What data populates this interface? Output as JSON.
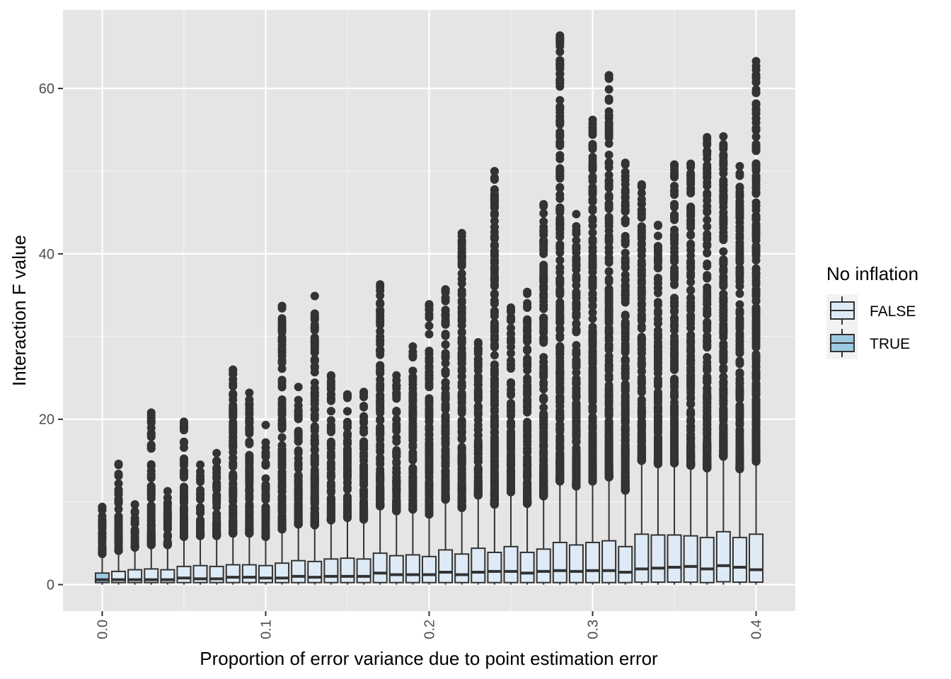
{
  "chart_data": {
    "type": "boxplot",
    "xlabel": "Proportion of error variance due to point estimation error",
    "ylabel": "Interaction F value",
    "x_ticks": [
      "0.0",
      "0.1",
      "0.2",
      "0.3",
      "0.4"
    ],
    "x_tick_values": [
      0.0,
      0.1,
      0.2,
      0.3,
      0.4
    ],
    "y_ticks": [
      "0",
      "20",
      "40",
      "60"
    ],
    "y_tick_values": [
      0,
      20,
      40,
      60
    ],
    "xlim": [
      -0.024,
      0.424
    ],
    "ylim": [
      -3.2,
      69.5
    ],
    "grid": true,
    "legend": {
      "title": "No inflation",
      "position": "right",
      "entries": [
        {
          "label": "FALSE",
          "color": "#deebf7"
        },
        {
          "label": "TRUE",
          "color": "#9ecae1"
        }
      ]
    },
    "colors": {
      "panel_background": "#e5e5e5",
      "grid": "#ffffff",
      "box_outline": "#333333",
      "outlier": "#333333",
      "FALSE": "#deebf7",
      "TRUE": "#9ecae1"
    },
    "boxes": [
      {
        "x": 0.0,
        "group": "TRUE",
        "q1": 0.25,
        "median": 0.6,
        "q3": 1.4,
        "whisker_low": 0.0,
        "whisker_high": 3.2,
        "max_outlier": 9.4
      },
      {
        "x": 0.01,
        "group": "FALSE",
        "q1": 0.25,
        "median": 0.6,
        "q3": 1.6,
        "whisker_low": 0.0,
        "whisker_high": 3.6,
        "max_outlier": 14.6
      },
      {
        "x": 0.02,
        "group": "FALSE",
        "q1": 0.25,
        "median": 0.6,
        "q3": 1.8,
        "whisker_low": 0.0,
        "whisker_high": 4.0,
        "max_outlier": 9.7
      },
      {
        "x": 0.03,
        "group": "FALSE",
        "q1": 0.25,
        "median": 0.6,
        "q3": 1.9,
        "whisker_low": 0.0,
        "whisker_high": 4.3,
        "max_outlier": 20.8
      },
      {
        "x": 0.04,
        "group": "FALSE",
        "q1": 0.25,
        "median": 0.6,
        "q3": 1.8,
        "whisker_low": 0.0,
        "whisker_high": 4.3,
        "max_outlier": 11.3
      },
      {
        "x": 0.05,
        "group": "FALSE",
        "q1": 0.25,
        "median": 0.8,
        "q3": 2.2,
        "whisker_low": 0.0,
        "whisker_high": 5.3,
        "max_outlier": 19.7
      },
      {
        "x": 0.06,
        "group": "FALSE",
        "q1": 0.25,
        "median": 0.7,
        "q3": 2.3,
        "whisker_low": 0.0,
        "whisker_high": 5.4,
        "max_outlier": 14.5
      },
      {
        "x": 0.07,
        "group": "FALSE",
        "q1": 0.25,
        "median": 0.7,
        "q3": 2.2,
        "whisker_low": 0.0,
        "whisker_high": 5.4,
        "max_outlier": 15.9
      },
      {
        "x": 0.08,
        "group": "FALSE",
        "q1": 0.25,
        "median": 0.9,
        "q3": 2.4,
        "whisker_low": 0.0,
        "whisker_high": 5.7,
        "max_outlier": 26.0
      },
      {
        "x": 0.09,
        "group": "FALSE",
        "q1": 0.25,
        "median": 0.9,
        "q3": 2.4,
        "whisker_low": 0.0,
        "whisker_high": 5.7,
        "max_outlier": 23.2
      },
      {
        "x": 0.1,
        "group": "FALSE",
        "q1": 0.25,
        "median": 0.8,
        "q3": 2.3,
        "whisker_low": 0.0,
        "whisker_high": 5.3,
        "max_outlier": 19.3
      },
      {
        "x": 0.11,
        "group": "FALSE",
        "q1": 0.25,
        "median": 0.8,
        "q3": 2.6,
        "whisker_low": 0.0,
        "whisker_high": 6.2,
        "max_outlier": 33.7
      },
      {
        "x": 0.12,
        "group": "FALSE",
        "q1": 0.25,
        "median": 1.0,
        "q3": 2.9,
        "whisker_low": 0.0,
        "whisker_high": 6.8,
        "max_outlier": 23.9
      },
      {
        "x": 0.13,
        "group": "FALSE",
        "q1": 0.25,
        "median": 0.9,
        "q3": 2.8,
        "whisker_low": 0.0,
        "whisker_high": 6.7,
        "max_outlier": 34.9
      },
      {
        "x": 0.14,
        "group": "FALSE",
        "q1": 0.25,
        "median": 1.0,
        "q3": 3.1,
        "whisker_low": 0.0,
        "whisker_high": 7.3,
        "max_outlier": 25.3
      },
      {
        "x": 0.15,
        "group": "FALSE",
        "q1": 0.25,
        "median": 1.0,
        "q3": 3.2,
        "whisker_low": 0.0,
        "whisker_high": 7.6,
        "max_outlier": 23.0
      },
      {
        "x": 0.16,
        "group": "FALSE",
        "q1": 0.25,
        "median": 1.0,
        "q3": 3.1,
        "whisker_low": 0.0,
        "whisker_high": 7.4,
        "max_outlier": 23.3
      },
      {
        "x": 0.17,
        "group": "FALSE",
        "q1": 0.25,
        "median": 1.4,
        "q3": 3.8,
        "whisker_low": 0.0,
        "whisker_high": 9.0,
        "max_outlier": 36.3
      },
      {
        "x": 0.18,
        "group": "FALSE",
        "q1": 0.25,
        "median": 1.2,
        "q3": 3.5,
        "whisker_low": 0.0,
        "whisker_high": 8.4,
        "max_outlier": 25.3
      },
      {
        "x": 0.19,
        "group": "FALSE",
        "q1": 0.25,
        "median": 1.2,
        "q3": 3.6,
        "whisker_low": 0.0,
        "whisker_high": 8.6,
        "max_outlier": 28.8
      },
      {
        "x": 0.2,
        "group": "FALSE",
        "q1": 0.25,
        "median": 1.2,
        "q3": 3.4,
        "whisker_low": 0.0,
        "whisker_high": 8.0,
        "max_outlier": 33.9
      },
      {
        "x": 0.21,
        "group": "FALSE",
        "q1": 0.25,
        "median": 1.5,
        "q3": 4.2,
        "whisker_low": 0.0,
        "whisker_high": 9.8,
        "max_outlier": 35.7
      },
      {
        "x": 0.22,
        "group": "FALSE",
        "q1": 0.25,
        "median": 1.2,
        "q3": 3.7,
        "whisker_low": 0.0,
        "whisker_high": 8.8,
        "max_outlier": 42.5
      },
      {
        "x": 0.23,
        "group": "FALSE",
        "q1": 0.25,
        "median": 1.5,
        "q3": 4.4,
        "whisker_low": 0.0,
        "whisker_high": 10.3,
        "max_outlier": 29.3
      },
      {
        "x": 0.24,
        "group": "FALSE",
        "q1": 0.25,
        "median": 1.6,
        "q3": 3.9,
        "whisker_low": 0.0,
        "whisker_high": 9.2,
        "max_outlier": 50.0
      },
      {
        "x": 0.25,
        "group": "FALSE",
        "q1": 0.25,
        "median": 1.6,
        "q3": 4.6,
        "whisker_low": 0.0,
        "whisker_high": 10.7,
        "max_outlier": 33.5
      },
      {
        "x": 0.26,
        "group": "FALSE",
        "q1": 0.25,
        "median": 1.4,
        "q3": 3.9,
        "whisker_low": 0.0,
        "whisker_high": 9.3,
        "max_outlier": 35.4
      },
      {
        "x": 0.27,
        "group": "FALSE",
        "q1": 0.25,
        "median": 1.6,
        "q3": 4.3,
        "whisker_low": 0.0,
        "whisker_high": 10.2,
        "max_outlier": 46.0
      },
      {
        "x": 0.28,
        "group": "FALSE",
        "q1": 0.25,
        "median": 1.7,
        "q3": 5.1,
        "whisker_low": 0.0,
        "whisker_high": 12.0,
        "max_outlier": 66.4
      },
      {
        "x": 0.29,
        "group": "FALSE",
        "q1": 0.25,
        "median": 1.6,
        "q3": 4.8,
        "whisker_low": 0.0,
        "whisker_high": 11.4,
        "max_outlier": 44.8
      },
      {
        "x": 0.3,
        "group": "FALSE",
        "q1": 0.25,
        "median": 1.7,
        "q3": 5.1,
        "whisker_low": 0.0,
        "whisker_high": 12.0,
        "max_outlier": 56.2
      },
      {
        "x": 0.31,
        "group": "FALSE",
        "q1": 0.25,
        "median": 1.7,
        "q3": 5.3,
        "whisker_low": 0.0,
        "whisker_high": 12.5,
        "max_outlier": 61.6
      },
      {
        "x": 0.32,
        "group": "FALSE",
        "q1": 0.25,
        "median": 1.5,
        "q3": 4.6,
        "whisker_low": 0.0,
        "whisker_high": 10.9,
        "max_outlier": 51.0
      },
      {
        "x": 0.33,
        "group": "FALSE",
        "q1": 0.3,
        "median": 1.9,
        "q3": 6.1,
        "whisker_low": 0.0,
        "whisker_high": 14.5,
        "max_outlier": 48.4
      },
      {
        "x": 0.34,
        "group": "FALSE",
        "q1": 0.3,
        "median": 2.0,
        "q3": 6.0,
        "whisker_low": 0.0,
        "whisker_high": 14.1,
        "max_outlier": 43.5
      },
      {
        "x": 0.35,
        "group": "FALSE",
        "q1": 0.3,
        "median": 2.1,
        "q3": 6.0,
        "whisker_low": 0.0,
        "whisker_high": 14.2,
        "max_outlier": 50.8
      },
      {
        "x": 0.36,
        "group": "FALSE",
        "q1": 0.3,
        "median": 2.2,
        "q3": 5.9,
        "whisker_low": 0.0,
        "whisker_high": 13.9,
        "max_outlier": 50.9
      },
      {
        "x": 0.37,
        "group": "FALSE",
        "q1": 0.25,
        "median": 1.9,
        "q3": 5.7,
        "whisker_low": 0.0,
        "whisker_high": 13.6,
        "max_outlier": 54.1
      },
      {
        "x": 0.38,
        "group": "FALSE",
        "q1": 0.35,
        "median": 2.3,
        "q3": 6.4,
        "whisker_low": 0.0,
        "whisker_high": 15.0,
        "max_outlier": 54.2
      },
      {
        "x": 0.39,
        "group": "FALSE",
        "q1": 0.3,
        "median": 2.1,
        "q3": 5.7,
        "whisker_low": 0.0,
        "whisker_high": 13.5,
        "max_outlier": 50.6
      },
      {
        "x": 0.4,
        "group": "FALSE",
        "q1": 0.3,
        "median": 1.8,
        "q3": 6.1,
        "whisker_low": 0.0,
        "whisker_high": 14.4,
        "max_outlier": 63.3
      }
    ]
  }
}
